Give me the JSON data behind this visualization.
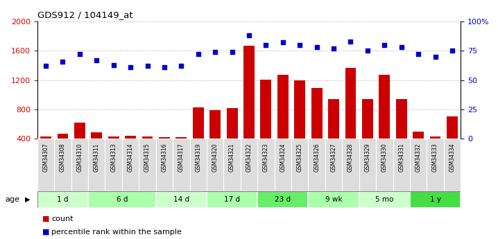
{
  "title": "GDS912 / 104149_at",
  "samples": [
    "GSM34307",
    "GSM34308",
    "GSM34310",
    "GSM34311",
    "GSM34313",
    "GSM34314",
    "GSM34315",
    "GSM34316",
    "GSM34317",
    "GSM34319",
    "GSM34320",
    "GSM34321",
    "GSM34322",
    "GSM34323",
    "GSM34324",
    "GSM34325",
    "GSM34326",
    "GSM34327",
    "GSM34328",
    "GSM34329",
    "GSM34330",
    "GSM34331",
    "GSM34332",
    "GSM34333",
    "GSM34334"
  ],
  "counts": [
    430,
    470,
    620,
    490,
    430,
    440,
    430,
    420,
    420,
    830,
    790,
    820,
    1670,
    1210,
    1270,
    1200,
    1090,
    940,
    1370,
    940,
    1270,
    940,
    500,
    430,
    700
  ],
  "percentiles": [
    62,
    66,
    72,
    67,
    63,
    61,
    62,
    61,
    62,
    72,
    74,
    74,
    88,
    80,
    82,
    80,
    78,
    77,
    83,
    75,
    80,
    78,
    72,
    70,
    75
  ],
  "groups": [
    {
      "label": "1 d",
      "start": 0,
      "end": 2,
      "color": "#ccffcc"
    },
    {
      "label": "6 d",
      "start": 3,
      "end": 6,
      "color": "#aaffaa"
    },
    {
      "label": "14 d",
      "start": 7,
      "end": 9,
      "color": "#ccffcc"
    },
    {
      "label": "17 d",
      "start": 10,
      "end": 12,
      "color": "#aaffaa"
    },
    {
      "label": "23 d",
      "start": 13,
      "end": 15,
      "color": "#66ee66"
    },
    {
      "label": "9 wk",
      "start": 16,
      "end": 18,
      "color": "#aaffaa"
    },
    {
      "label": "5 mo",
      "start": 19,
      "end": 21,
      "color": "#ccffcc"
    },
    {
      "label": "1 y",
      "start": 22,
      "end": 24,
      "color": "#44dd44"
    }
  ],
  "bar_color": "#cc0000",
  "dot_color": "#0000cc",
  "ylim_left": [
    400,
    2000
  ],
  "ylim_right": [
    0,
    100
  ],
  "yticks_left": [
    400,
    800,
    1200,
    1600,
    2000
  ],
  "yticks_right": [
    0,
    25,
    50,
    75,
    100
  ],
  "ylabel_right_ticks": [
    "0",
    "25",
    "50",
    "75",
    "100%"
  ],
  "legend_count_label": "count",
  "legend_pct_label": "percentile rank within the sample",
  "age_label": "age",
  "background_color": "#ffffff",
  "plot_bg_color": "#ffffff",
  "grid_color": "#aaaaaa",
  "xlabel_bg": "#dddddd"
}
